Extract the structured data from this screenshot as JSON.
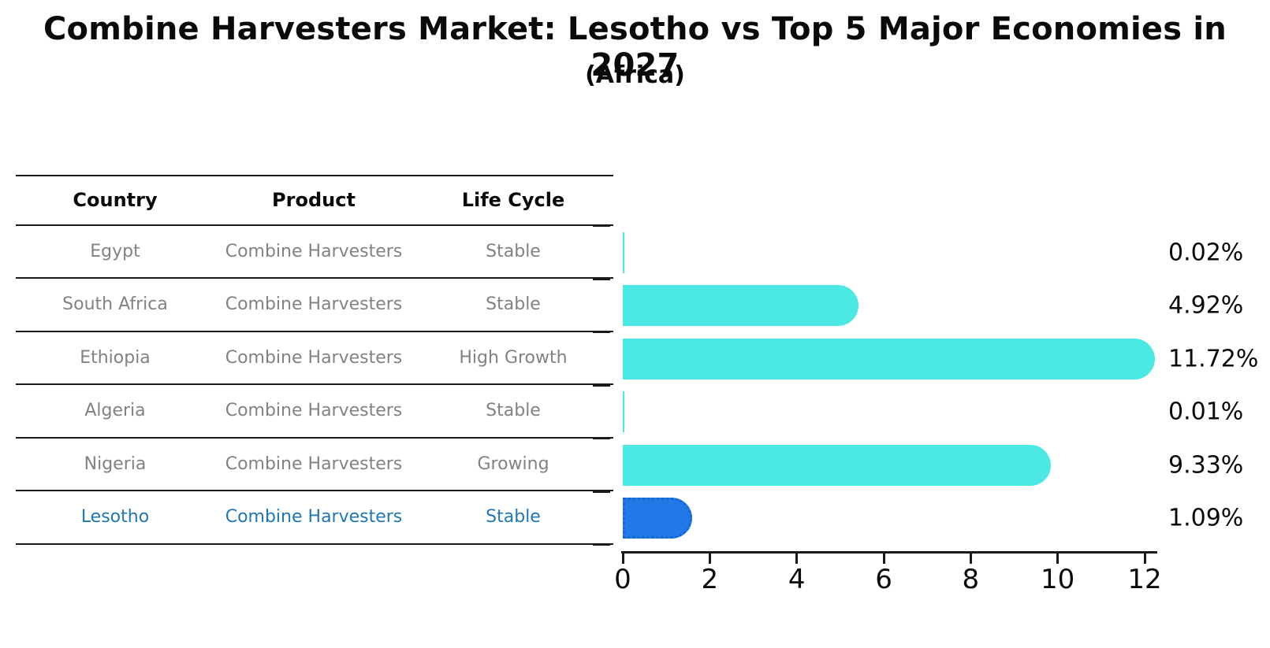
{
  "title": "Combine Harvesters Market: Lesotho vs Top 5 Major Economies in 2027",
  "subtitle": "(Africa)",
  "table": {
    "headers": [
      "Country",
      "Product",
      "Life Cycle"
    ],
    "rows": [
      {
        "country": "Egypt",
        "product": "Combine Harvesters",
        "life_cycle": "Stable",
        "highlight": false
      },
      {
        "country": "South Africa",
        "product": "Combine Harvesters",
        "life_cycle": "Stable",
        "highlight": false
      },
      {
        "country": "Ethiopia",
        "product": "Combine Harvesters",
        "life_cycle": "High Growth",
        "highlight": false
      },
      {
        "country": "Algeria",
        "product": "Combine Harvesters",
        "life_cycle": "Stable",
        "highlight": false
      },
      {
        "country": "Nigeria",
        "product": "Combine Harvesters",
        "life_cycle": "Growing",
        "highlight": false
      },
      {
        "country": "Lesotho",
        "product": "Combine Harvesters",
        "life_cycle": "Stable",
        "highlight": true
      }
    ]
  },
  "chart_data": {
    "type": "bar",
    "orientation": "horizontal",
    "title": "Combine Harvesters Market: Lesotho vs Top 5 Major Economies in 2027 (Africa)",
    "categories": [
      "Egypt",
      "South Africa",
      "Ethiopia",
      "Algeria",
      "Nigeria",
      "Lesotho"
    ],
    "values": [
      0.02,
      4.92,
      11.72,
      0.01,
      9.33,
      1.09
    ],
    "value_labels": [
      "0.02%",
      "4.92%",
      "11.72%",
      "0.01%",
      "9.33%",
      "1.09%"
    ],
    "unit": "%",
    "xlim": [
      0,
      12
    ],
    "x_ticks": [
      0,
      2,
      4,
      6,
      8,
      10,
      12
    ],
    "grid": false,
    "legend": false,
    "highlight_index": 5,
    "bar_color": "#4BE8E4",
    "highlight_bar_color": "#2079E6",
    "highlight_border_color": "#1766CF"
  },
  "colors": {
    "background": "#FFFFFF",
    "title_text": "#0A0A0A",
    "table_text": "#808285",
    "highlight_text": "#1F77B4",
    "line": "#1A1A1A"
  }
}
